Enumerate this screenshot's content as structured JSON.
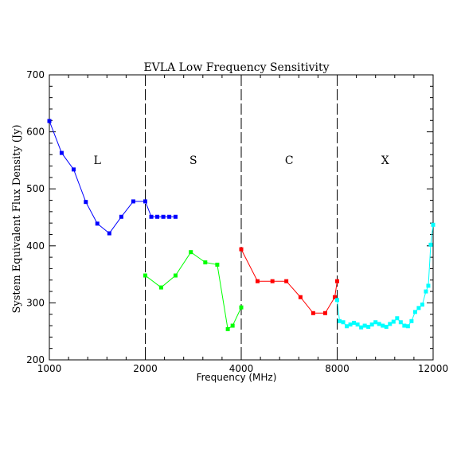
{
  "chart_data": {
    "type": "line",
    "title": "EVLA Low Frequency Sensitivity",
    "xlabel": "Frequency (MHz)",
    "ylabel": "System Equivalent Flux Density (Jy)",
    "ylim": [
      200,
      700
    ],
    "yticks": [
      200,
      300,
      400,
      500,
      600,
      700
    ],
    "xticks": [
      "1000",
      "2000",
      "4000",
      "8000",
      "12000"
    ],
    "x_scale": "piecewise-linear (each band 1000-2000, 2000-4000, 4000-8000, 8000-12000 spans one quarter of the axis)",
    "grid": false,
    "band_boundaries": [
      2000,
      4000,
      8000
    ],
    "bands": [
      {
        "label": "L",
        "center": 1500
      },
      {
        "label": "S",
        "center": 3000
      },
      {
        "label": "C",
        "center": 6000
      },
      {
        "label": "X",
        "center": 10000
      }
    ],
    "series": [
      {
        "color": "#0000ff",
        "x": [
          1000,
          1128,
          1253,
          1380,
          1500,
          1625,
          1750,
          1875,
          2000,
          2125,
          2250,
          2375,
          2500,
          2630
        ],
        "y": [
          619,
          563,
          534,
          477,
          439,
          422,
          451,
          478,
          478,
          451,
          451,
          451,
          451,
          451
        ]
      },
      {
        "color": "#00ff00",
        "x": [
          2000,
          2330,
          2630,
          2950,
          3250,
          3500,
          3720,
          3820,
          4000
        ],
        "y": [
          348,
          327,
          348,
          389,
          371,
          367,
          254,
          260,
          292
        ]
      },
      {
        "color": "#ff0000",
        "x": [
          4000,
          4680,
          5300,
          5880,
          6470,
          7000,
          7500,
          7900,
          8000
        ],
        "y": [
          394,
          338,
          338,
          338,
          310,
          282,
          282,
          310,
          338
        ]
      },
      {
        "color": "#00ffff",
        "x": [
          8000,
          8100,
          8250,
          8400,
          8550,
          8700,
          8850,
          9000,
          9150,
          9300,
          9450,
          9600,
          9750,
          9900,
          10050,
          10200,
          10350,
          10500,
          10650,
          10800,
          10950,
          11100,
          11250,
          11400,
          11550,
          11700,
          11800,
          11900,
          12000
        ],
        "y": [
          305,
          268,
          266,
          259,
          262,
          265,
          262,
          257,
          260,
          258,
          262,
          266,
          263,
          260,
          258,
          263,
          267,
          273,
          266,
          260,
          259,
          268,
          284,
          291,
          297,
          320,
          330,
          402,
          437
        ]
      }
    ]
  }
}
